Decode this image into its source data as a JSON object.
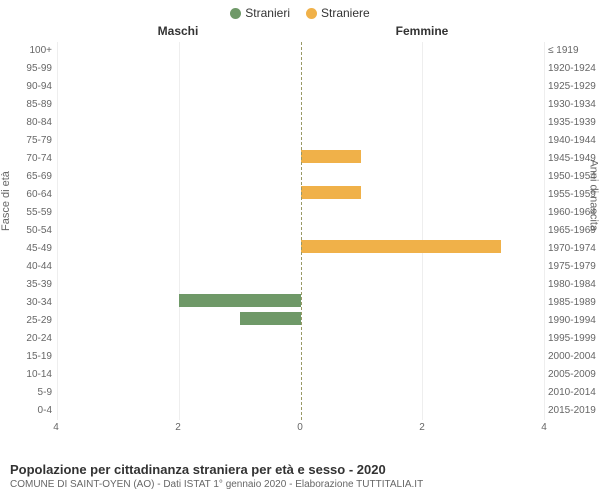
{
  "legend": {
    "male": {
      "label": "Stranieri",
      "color": "#6f9968"
    },
    "female": {
      "label": "Straniere",
      "color": "#f0b149"
    }
  },
  "headers": {
    "male": "Maschi",
    "female": "Femmine"
  },
  "axes": {
    "left_label": "Fasce di età",
    "right_label": "Anni di nascita",
    "xmax": 4,
    "xticks": [
      4,
      2,
      0,
      2,
      4
    ],
    "grid_color": "#eeeeee",
    "center_color": "#999966"
  },
  "colors": {
    "male": "#6f9968",
    "female": "#f0b149",
    "background": "#ffffff",
    "text": "#333333",
    "muted": "#666666"
  },
  "age_labels": [
    "100+",
    "95-99",
    "90-94",
    "85-89",
    "80-84",
    "75-79",
    "70-74",
    "65-69",
    "60-64",
    "55-59",
    "50-54",
    "45-49",
    "40-44",
    "35-39",
    "30-34",
    "25-29",
    "20-24",
    "15-19",
    "10-14",
    "5-9",
    "0-4"
  ],
  "birth_labels": [
    "≤ 1919",
    "1920-1924",
    "1925-1929",
    "1930-1934",
    "1935-1939",
    "1940-1944",
    "1945-1949",
    "1950-1954",
    "1955-1959",
    "1960-1964",
    "1965-1969",
    "1970-1974",
    "1975-1979",
    "1980-1984",
    "1985-1989",
    "1990-1994",
    "1995-1999",
    "2000-2004",
    "2005-2009",
    "2010-2014",
    "2015-2019"
  ],
  "rows": [
    {
      "m": 0,
      "f": 0
    },
    {
      "m": 0,
      "f": 0
    },
    {
      "m": 0,
      "f": 0
    },
    {
      "m": 0,
      "f": 0
    },
    {
      "m": 0,
      "f": 0
    },
    {
      "m": 0,
      "f": 0
    },
    {
      "m": 0,
      "f": 1
    },
    {
      "m": 0,
      "f": 0
    },
    {
      "m": 0,
      "f": 1
    },
    {
      "m": 0,
      "f": 0
    },
    {
      "m": 0,
      "f": 0
    },
    {
      "m": 0,
      "f": 3.3
    },
    {
      "m": 0,
      "f": 0
    },
    {
      "m": 0,
      "f": 0
    },
    {
      "m": 2,
      "f": 0
    },
    {
      "m": 1,
      "f": 0
    },
    {
      "m": 0,
      "f": 0
    },
    {
      "m": 0,
      "f": 0
    },
    {
      "m": 0,
      "f": 0
    },
    {
      "m": 0,
      "f": 0
    },
    {
      "m": 0,
      "f": 0
    }
  ],
  "title": "Popolazione per cittadinanza straniera per età e sesso - 2020",
  "subtitle": "COMUNE DI SAINT-OYEN (AO) - Dati ISTAT 1° gennaio 2020 - Elaborazione TUTTITALIA.IT"
}
